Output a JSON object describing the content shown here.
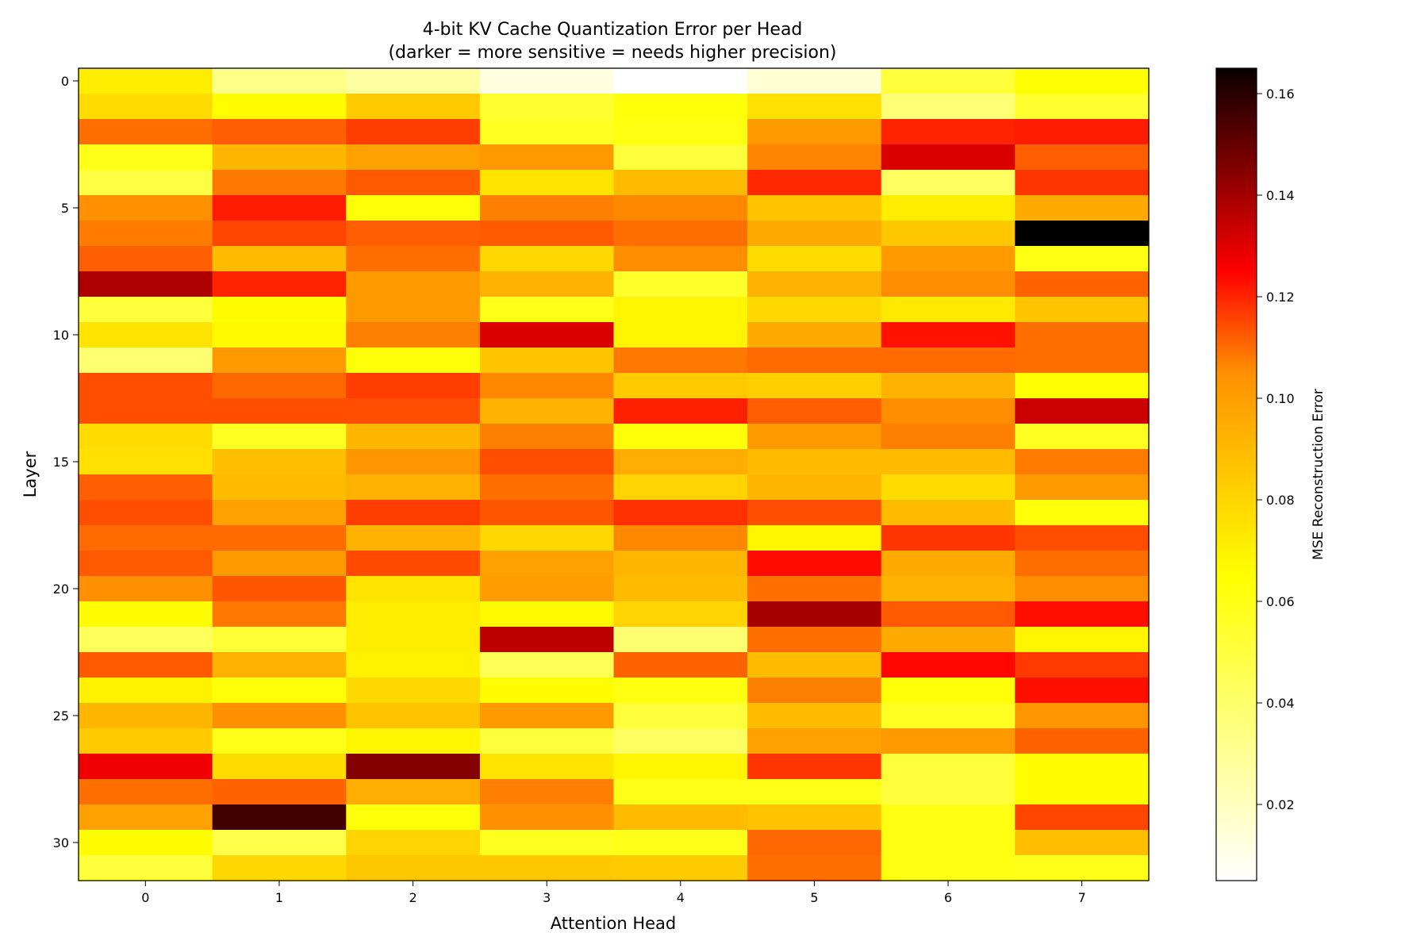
{
  "chart_data": {
    "type": "heatmap",
    "title": "4-bit KV Cache Quantization Error per Head",
    "subtitle": "(darker = more sensitive = needs higher precision)",
    "xlabel": "Attention Head",
    "ylabel": "Layer",
    "colorbar_label": "MSE Reconstruction Error",
    "colormap": "hot_r",
    "color_range": [
      0.005,
      0.165
    ],
    "x": [
      0,
      1,
      2,
      3,
      4,
      5,
      6,
      7
    ],
    "y": [
      0,
      1,
      2,
      3,
      4,
      5,
      6,
      7,
      8,
      9,
      10,
      11,
      12,
      13,
      14,
      15,
      16,
      17,
      18,
      19,
      20,
      21,
      22,
      23,
      24,
      25,
      26,
      27,
      28,
      29,
      30,
      31
    ],
    "x_ticks": [
      "0",
      "1",
      "2",
      "3",
      "4",
      "5",
      "6",
      "7"
    ],
    "y_ticks": [
      {
        "value": 0,
        "label": "0"
      },
      {
        "value": 5,
        "label": "5"
      },
      {
        "value": 10,
        "label": "10"
      },
      {
        "value": 15,
        "label": "15"
      },
      {
        "value": 20,
        "label": "20"
      },
      {
        "value": 25,
        "label": "25"
      },
      {
        "value": 30,
        "label": "30"
      }
    ],
    "colorbar_ticks": [
      {
        "value": 0.02,
        "label": "0.02"
      },
      {
        "value": 0.04,
        "label": "0.04"
      },
      {
        "value": 0.06,
        "label": "0.06"
      },
      {
        "value": 0.08,
        "label": "0.08"
      },
      {
        "value": 0.1,
        "label": "0.10"
      },
      {
        "value": 0.12,
        "label": "0.12"
      },
      {
        "value": 0.14,
        "label": "0.14"
      },
      {
        "value": 0.16,
        "label": "0.16"
      }
    ],
    "values": [
      [
        0.05,
        0.024,
        0.02,
        0.01,
        0.005,
        0.012,
        0.036,
        0.045
      ],
      [
        0.054,
        0.046,
        0.058,
        0.038,
        0.044,
        0.053,
        0.027,
        0.038
      ],
      [
        0.08,
        0.084,
        0.092,
        0.04,
        0.043,
        0.07,
        0.098,
        0.1
      ],
      [
        0.042,
        0.063,
        0.068,
        0.07,
        0.036,
        0.075,
        0.115,
        0.084
      ],
      [
        0.035,
        0.078,
        0.085,
        0.052,
        0.062,
        0.097,
        0.03,
        0.094
      ],
      [
        0.072,
        0.1,
        0.044,
        0.076,
        0.074,
        0.06,
        0.05,
        0.066
      ],
      [
        0.077,
        0.09,
        0.084,
        0.085,
        0.08,
        0.066,
        0.059,
        0.165
      ],
      [
        0.084,
        0.062,
        0.08,
        0.055,
        0.073,
        0.054,
        0.07,
        0.043
      ],
      [
        0.125,
        0.098,
        0.07,
        0.064,
        0.039,
        0.064,
        0.073,
        0.083
      ],
      [
        0.036,
        0.046,
        0.07,
        0.042,
        0.048,
        0.055,
        0.051,
        0.06
      ],
      [
        0.052,
        0.047,
        0.076,
        0.115,
        0.048,
        0.066,
        0.102,
        0.08
      ],
      [
        0.028,
        0.07,
        0.044,
        0.06,
        0.078,
        0.081,
        0.081,
        0.08
      ],
      [
        0.088,
        0.082,
        0.092,
        0.074,
        0.058,
        0.057,
        0.064,
        0.045
      ],
      [
        0.088,
        0.088,
        0.088,
        0.064,
        0.099,
        0.084,
        0.073,
        0.118
      ],
      [
        0.054,
        0.04,
        0.063,
        0.076,
        0.044,
        0.07,
        0.076,
        0.04
      ],
      [
        0.053,
        0.061,
        0.071,
        0.088,
        0.065,
        0.062,
        0.062,
        0.077
      ],
      [
        0.084,
        0.062,
        0.064,
        0.08,
        0.056,
        0.063,
        0.054,
        0.07
      ],
      [
        0.088,
        0.068,
        0.092,
        0.086,
        0.095,
        0.088,
        0.062,
        0.044
      ],
      [
        0.081,
        0.081,
        0.064,
        0.055,
        0.074,
        0.048,
        0.094,
        0.088
      ],
      [
        0.085,
        0.07,
        0.089,
        0.068,
        0.063,
        0.104,
        0.066,
        0.08
      ],
      [
        0.072,
        0.086,
        0.052,
        0.069,
        0.062,
        0.08,
        0.064,
        0.073
      ],
      [
        0.046,
        0.078,
        0.05,
        0.047,
        0.056,
        0.127,
        0.085,
        0.103
      ],
      [
        0.031,
        0.037,
        0.05,
        0.122,
        0.028,
        0.08,
        0.066,
        0.048
      ],
      [
        0.085,
        0.064,
        0.049,
        0.032,
        0.083,
        0.062,
        0.105,
        0.093
      ],
      [
        0.049,
        0.044,
        0.055,
        0.046,
        0.043,
        0.076,
        0.044,
        0.103
      ],
      [
        0.063,
        0.072,
        0.06,
        0.07,
        0.036,
        0.062,
        0.04,
        0.071
      ],
      [
        0.058,
        0.042,
        0.048,
        0.036,
        0.03,
        0.068,
        0.07,
        0.083
      ],
      [
        0.11,
        0.054,
        0.135,
        0.052,
        0.048,
        0.094,
        0.036,
        0.046
      ],
      [
        0.08,
        0.083,
        0.065,
        0.076,
        0.042,
        0.042,
        0.036,
        0.046
      ],
      [
        0.068,
        0.15,
        0.044,
        0.072,
        0.062,
        0.06,
        0.043,
        0.09
      ],
      [
        0.046,
        0.034,
        0.056,
        0.041,
        0.042,
        0.082,
        0.043,
        0.061
      ],
      [
        0.036,
        0.055,
        0.059,
        0.059,
        0.058,
        0.08,
        0.043,
        0.042
      ]
    ]
  }
}
